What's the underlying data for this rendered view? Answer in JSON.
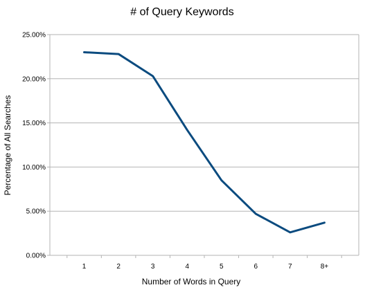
{
  "chart_data": {
    "type": "line",
    "title": "# of Query Keywords",
    "xlabel": "Number of Words in Query",
    "ylabel": "Percentage of All Searches",
    "categories": [
      "1",
      "2",
      "3",
      "4",
      "5",
      "6",
      "7",
      "8+"
    ],
    "series": [
      {
        "values": [
          23.0,
          22.8,
          20.3,
          14.2,
          8.5,
          4.7,
          2.6,
          3.7
        ]
      }
    ],
    "ylim": [
      0,
      25
    ],
    "yticks": [
      "0.00%",
      "5.00%",
      "10.00%",
      "15.00%",
      "20.00%",
      "25.00%"
    ],
    "grid": true,
    "line_color": "#0B4B7F"
  }
}
